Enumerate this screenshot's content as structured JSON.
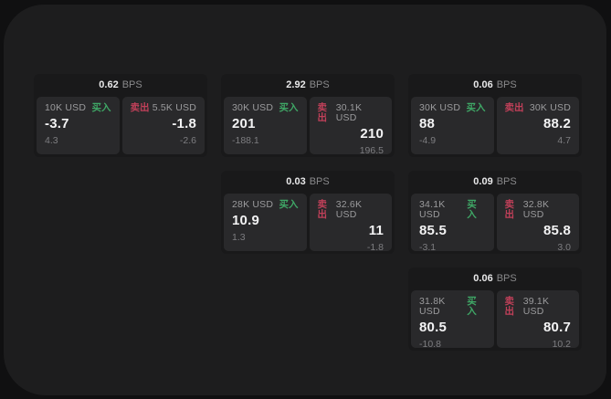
{
  "labels": {
    "bps_unit": "BPS",
    "buy": "买入",
    "sell": "卖出"
  },
  "colors": {
    "outer_bg": "#101011",
    "surface_bg": "#1d1d1e",
    "card_bg": "#19191a",
    "panel_bg": "#29292b",
    "buy_accent": "#3fa766",
    "sell_accent": "#c04059",
    "primary_text": "#f3f3f4",
    "muted_text": "#9b9b9d",
    "faint_text": "#7d7d80"
  },
  "cards": [
    {
      "bps": "0.62",
      "buy": {
        "amount": "10K USD",
        "price": "-3.7",
        "sub": "4.3"
      },
      "sell": {
        "amount": "5.5K USD",
        "price": "-1.8",
        "sub": "-2.6"
      }
    },
    {
      "bps": "2.92",
      "buy": {
        "amount": "30K USD",
        "price": "201",
        "sub": "-188.1"
      },
      "sell": {
        "amount": "30.1K USD",
        "price": "210",
        "sub": "196.5"
      }
    },
    {
      "bps": "0.06",
      "buy": {
        "amount": "30K USD",
        "price": "88",
        "sub": "-4.9"
      },
      "sell": {
        "amount": "30K USD",
        "price": "88.2",
        "sub": "4.7"
      }
    },
    {
      "bps": "0.03",
      "buy": {
        "amount": "28K USD",
        "price": "10.9",
        "sub": "1.3"
      },
      "sell": {
        "amount": "32.6K USD",
        "price": "11",
        "sub": "-1.8"
      }
    },
    {
      "bps": "0.09",
      "buy": {
        "amount": "34.1K USD",
        "price": "85.5",
        "sub": "-3.1"
      },
      "sell": {
        "amount": "32.8K USD",
        "price": "85.8",
        "sub": "3.0"
      }
    },
    {
      "bps": "0.06",
      "buy": {
        "amount": "31.8K USD",
        "price": "80.5",
        "sub": "-10.8"
      },
      "sell": {
        "amount": "39.1K USD",
        "price": "80.7",
        "sub": "10.2"
      }
    }
  ]
}
